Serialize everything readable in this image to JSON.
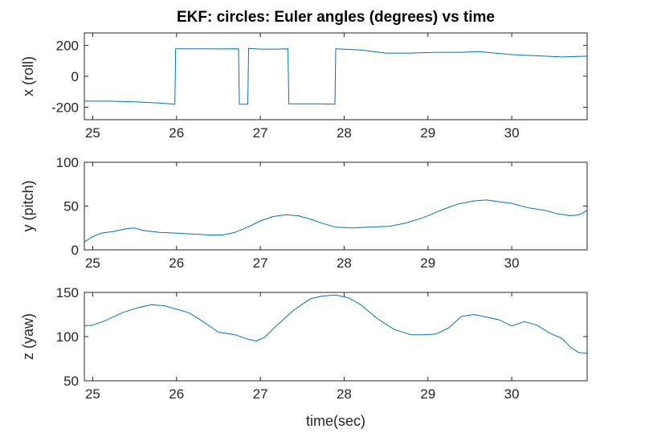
{
  "chart_data": {
    "title": "EKF: circles: Euler angles (degrees) vs time",
    "xlabel": "time(sec)",
    "series_color": "#0072bd",
    "panels": [
      {
        "type": "line",
        "ylabel": "x (roll)",
        "xlim": [
          24.9,
          30.9
        ],
        "ylim": [
          -280,
          280
        ],
        "xticks": [
          25,
          26,
          27,
          28,
          29,
          30
        ],
        "yticks": [
          -200,
          0,
          200
        ],
        "x": [
          24.9,
          25.2,
          25.5,
          25.8,
          25.98,
          25.99,
          26.2,
          26.5,
          26.74,
          26.75,
          26.85,
          26.86,
          27.0,
          27.2,
          27.33,
          27.34,
          27.5,
          27.7,
          27.89,
          27.9,
          28.2,
          28.5,
          28.8,
          29.1,
          29.4,
          29.6,
          29.8,
          30.0,
          30.2,
          30.4,
          30.6,
          30.9
        ],
        "y": [
          -160,
          -160,
          -165,
          -172,
          -180,
          178,
          178,
          177,
          178,
          -180,
          -180,
          180,
          176,
          176,
          178,
          -178,
          -178,
          -178,
          -180,
          178,
          170,
          150,
          150,
          155,
          155,
          160,
          150,
          140,
          135,
          130,
          125,
          130
        ]
      },
      {
        "type": "line",
        "ylabel": "y (pitch)",
        "xlim": [
          24.9,
          30.9
        ],
        "ylim": [
          0,
          100
        ],
        "xticks": [
          25,
          26,
          27,
          28,
          29,
          30
        ],
        "yticks": [
          0,
          50,
          100
        ],
        "x": [
          24.9,
          25.0,
          25.1,
          25.25,
          25.4,
          25.5,
          25.6,
          25.8,
          26.0,
          26.2,
          26.4,
          26.55,
          26.7,
          26.85,
          27.0,
          27.15,
          27.3,
          27.45,
          27.6,
          27.75,
          27.9,
          28.1,
          28.3,
          28.55,
          28.75,
          28.95,
          29.15,
          29.35,
          29.55,
          29.7,
          29.85,
          30.0,
          30.2,
          30.4,
          30.55,
          30.7,
          30.8,
          30.9
        ],
        "y": [
          9,
          15,
          19,
          21,
          24,
          25,
          22,
          20,
          19,
          18,
          17,
          17,
          20,
          26,
          33,
          38,
          40,
          39,
          35,
          30,
          26,
          25,
          26,
          27,
          31,
          37,
          45,
          52,
          56,
          57,
          55,
          53,
          48,
          45,
          41,
          39,
          40,
          45
        ]
      },
      {
        "type": "line",
        "ylabel": "z (yaw)",
        "xlim": [
          24.9,
          30.9
        ],
        "ylim": [
          50,
          150
        ],
        "xticks": [
          25,
          26,
          27,
          28,
          29,
          30
        ],
        "yticks": [
          50,
          100,
          150
        ],
        "x": [
          24.9,
          25.0,
          25.15,
          25.35,
          25.55,
          25.7,
          25.85,
          26.0,
          26.15,
          26.3,
          26.5,
          26.7,
          26.85,
          26.95,
          27.05,
          27.2,
          27.4,
          27.6,
          27.75,
          27.9,
          28.05,
          28.2,
          28.4,
          28.6,
          28.8,
          28.95,
          29.1,
          29.25,
          29.4,
          29.55,
          29.7,
          29.85,
          30.0,
          30.15,
          30.3,
          30.45,
          30.6,
          30.7,
          30.8,
          30.9
        ],
        "y": [
          112,
          113,
          118,
          127,
          133,
          136,
          135,
          131,
          127,
          118,
          105,
          102,
          97,
          95,
          99,
          113,
          130,
          143,
          146,
          147,
          144,
          136,
          120,
          108,
          102,
          102,
          103,
          110,
          123,
          125,
          122,
          119,
          112,
          117,
          113,
          104,
          98,
          88,
          82,
          81
        ]
      }
    ]
  }
}
